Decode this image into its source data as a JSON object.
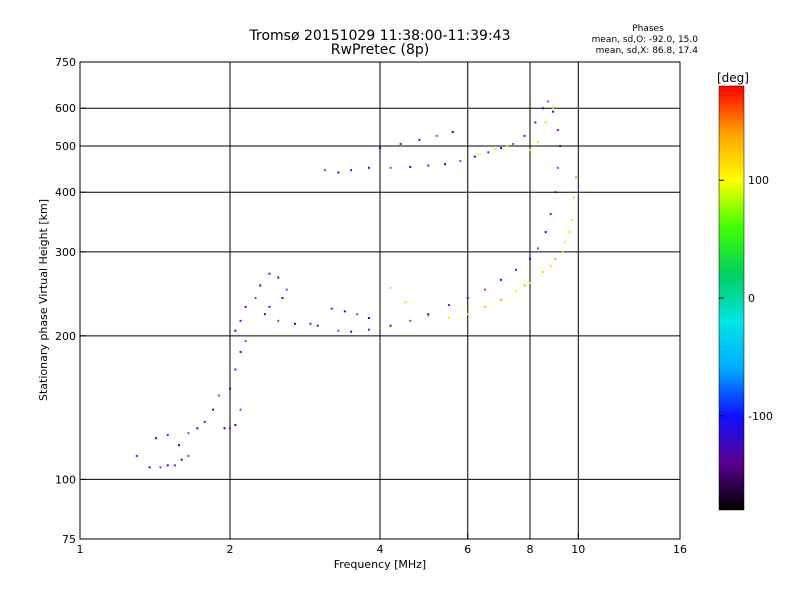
{
  "chart_data": {
    "type": "scatter",
    "title": "Tromsø 20151029 11:38:00-11:39:43",
    "subtitle": "RwPretec (8p)",
    "xlabel": "Frequency [MHz]",
    "ylabel": "Stationary phase Virtual Height [km]",
    "x_scale": "log",
    "y_scale": "log",
    "xlim": [
      1,
      16
    ],
    "ylim": [
      75,
      750
    ],
    "x_ticks": [
      1,
      2,
      4,
      6,
      8,
      10,
      16
    ],
    "y_ticks": [
      75,
      100,
      200,
      300,
      400,
      500,
      600,
      750
    ],
    "x_grid": [
      2,
      4,
      6,
      8,
      10
    ],
    "y_grid": [
      100,
      200,
      300,
      400,
      500,
      600
    ],
    "grid": true,
    "stats": {
      "heading": "Phases",
      "line1": "mean, sd,O: -92.0, 15.0",
      "line2": "mean, sd,X:  86.8, 17.4"
    },
    "colorbar": {
      "label": "[deg]",
      "ticks": [
        {
          "value": 100,
          "label": "100"
        },
        {
          "value": 0,
          "label": "0"
        },
        {
          "value": -100,
          "label": "-100"
        }
      ],
      "range": [
        -180,
        180
      ],
      "colors": [
        "#000000",
        "#5a0090",
        "#1010ff",
        "#00aaff",
        "#00e6e6",
        "#00d060",
        "#40ff00",
        "#ffff00",
        "#ffa000",
        "#ff0000"
      ]
    },
    "series": [
      {
        "points": [
          [
            1.3,
            112
          ],
          [
            1.38,
            106
          ],
          [
            1.45,
            106
          ],
          [
            1.5,
            107
          ],
          [
            1.55,
            107
          ],
          [
            1.6,
            110
          ],
          [
            1.65,
            112
          ],
          [
            1.42,
            122
          ],
          [
            1.5,
            124
          ],
          [
            1.58,
            118
          ],
          [
            1.65,
            125
          ],
          [
            1.72,
            128
          ],
          [
            1.78,
            132
          ],
          [
            1.85,
            140
          ],
          [
            1.9,
            150
          ],
          [
            1.95,
            128
          ],
          [
            2.0,
            128
          ],
          [
            2.05,
            130
          ],
          [
            2.1,
            140
          ],
          [
            2.0,
            155
          ],
          [
            2.05,
            170
          ],
          [
            2.1,
            185
          ],
          [
            2.15,
            195
          ],
          [
            2.05,
            205
          ],
          [
            2.1,
            215
          ],
          [
            2.15,
            230
          ],
          [
            2.25,
            240
          ],
          [
            2.3,
            255
          ],
          [
            2.4,
            270
          ],
          [
            2.5,
            265
          ],
          [
            2.6,
            250
          ],
          [
            2.55,
            240
          ],
          [
            2.4,
            230
          ],
          [
            2.35,
            222
          ],
          [
            2.5,
            215
          ],
          [
            2.7,
            212
          ],
          [
            2.9,
            212
          ],
          [
            3.0,
            210
          ],
          [
            3.3,
            205
          ],
          [
            3.5,
            204
          ],
          [
            3.8,
            206
          ],
          [
            4.2,
            210
          ],
          [
            4.6,
            215
          ],
          [
            5.0,
            222
          ],
          [
            5.5,
            232
          ],
          [
            6.0,
            240
          ],
          [
            6.5,
            250
          ],
          [
            7.0,
            262
          ],
          [
            7.5,
            275
          ],
          [
            8.0,
            290
          ],
          [
            8.3,
            305
          ],
          [
            8.6,
            330
          ],
          [
            8.8,
            360
          ],
          [
            9.0,
            400
          ],
          [
            9.1,
            450
          ],
          [
            9.2,
            500
          ],
          [
            9.1,
            540
          ],
          [
            8.9,
            590
          ],
          [
            8.7,
            620
          ],
          [
            8.5,
            600
          ],
          [
            8.2,
            560
          ],
          [
            7.8,
            525
          ],
          [
            7.4,
            505
          ],
          [
            7.0,
            495
          ],
          [
            6.6,
            485
          ],
          [
            6.2,
            475
          ],
          [
            5.8,
            465
          ],
          [
            5.4,
            458
          ],
          [
            5.0,
            455
          ],
          [
            4.6,
            452
          ],
          [
            4.2,
            450
          ],
          [
            3.8,
            450
          ],
          [
            3.5,
            445
          ],
          [
            3.3,
            440
          ],
          [
            3.1,
            445
          ],
          [
            4.0,
            495
          ],
          [
            4.4,
            505
          ],
          [
            4.8,
            515
          ],
          [
            5.2,
            525
          ],
          [
            5.6,
            535
          ],
          [
            3.2,
            228
          ],
          [
            3.4,
            225
          ],
          [
            3.6,
            222
          ],
          [
            3.8,
            218
          ]
        ]
      },
      {
        "points": [
          [
            4.2,
            252
          ],
          [
            4.5,
            235
          ],
          [
            5.0,
            220
          ],
          [
            5.5,
            218
          ],
          [
            6.0,
            222
          ],
          [
            6.5,
            230
          ],
          [
            7.0,
            238
          ],
          [
            7.5,
            248
          ],
          [
            8.0,
            258
          ],
          [
            8.5,
            272
          ],
          [
            9.0,
            290
          ],
          [
            9.4,
            315
          ],
          [
            9.7,
            350
          ],
          [
            9.8,
            390
          ],
          [
            9.9,
            430
          ],
          [
            9.6,
            330
          ],
          [
            9.3,
            300
          ],
          [
            8.8,
            280
          ],
          [
            7.8,
            255
          ],
          [
            8.0,
            490
          ],
          [
            8.3,
            510
          ],
          [
            8.6,
            560
          ],
          [
            8.9,
            600
          ],
          [
            6.3,
            480
          ],
          [
            6.8,
            492
          ],
          [
            7.2,
            500
          ]
        ]
      }
    ]
  }
}
